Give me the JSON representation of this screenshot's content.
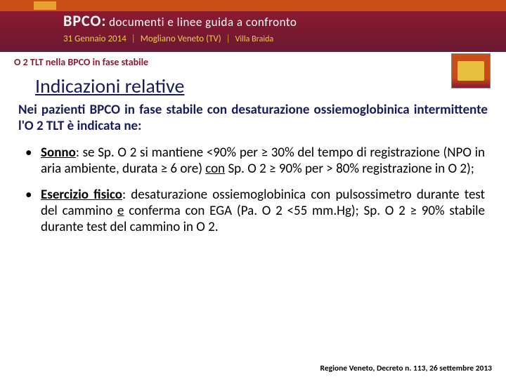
{
  "banner": {
    "title_main": "BPCO:",
    "title_sub": "documenti e linee guida a confronto",
    "date": "31 Gennaio 2014",
    "location": "Mogliano Veneto (TV)",
    "venue": "Villa Braida"
  },
  "section_header": "O 2 TLT nella BPCO in fase stabile",
  "heading": "Indicazioni  relative",
  "intro": "Nei pazienti BPCO in fase stabile con desaturazione ossiemoglobinica intermittente l'O 2 TLT è indicata ne:",
  "bullets": {
    "b1_label": "Sonno",
    "b1_text": ": se Sp. O 2 si mantiene <90% per ≥ 30% del tempo di registrazione (NPO in aria ambiente, durata ≥ 6 ore) ",
    "b1_underlined": "con",
    "b1_text2": " Sp. O 2 ≥ 90% per > 80% registrazione in O 2);",
    "b2_label": "Esercizio fisico",
    "b2_text": ": desaturazione ossiemoglobinica con pulsossimetro durante test del cammino ",
    "b2_underlined": "e",
    "b2_text2": " conferma con EGA (Pa. O 2 <55 mm.Hg); Sp. O 2 ≥ 90% stabile durante test del cammino in O 2."
  },
  "footer": "Regione Veneto, Decreto n. 113, 26 settembre 2013",
  "colors": {
    "banner_orange": "#c94d16",
    "banner_maroon": "#8b1a2f",
    "heading_blue": "#1a1a5e",
    "accent_gold": "#e8a030"
  }
}
